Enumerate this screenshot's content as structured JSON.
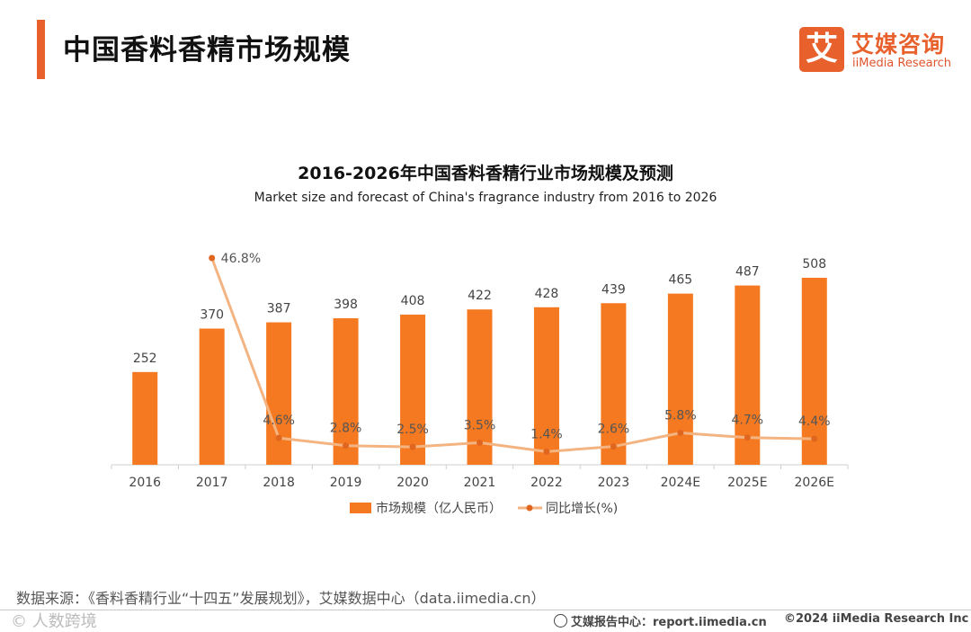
{
  "header": {
    "title": "中国香料香精市场规模",
    "logo_mark": "艾",
    "logo_cn": "艾媒咨询",
    "logo_en": "iiMedia Research"
  },
  "colors": {
    "accent": "#e8612c",
    "bar": "#f47920",
    "line": "#f3b482",
    "dot": "#e0661f"
  },
  "chart_data": {
    "type": "bar",
    "title": "2016-2026年中国香料香精行业市场规模及预测",
    "subtitle": "Market size and forecast of China's fragrance industry from 2016 to 2026",
    "categories": [
      "2016",
      "2017",
      "2018",
      "2019",
      "2020",
      "2021",
      "2022",
      "2023",
      "2024E",
      "2025E",
      "2026E"
    ],
    "series": [
      {
        "name": "市场规模（亿人民币）",
        "type": "bar",
        "values": [
          252,
          370,
          387,
          398,
          408,
          422,
          428,
          439,
          465,
          487,
          508
        ]
      },
      {
        "name": "同比增长(%)",
        "type": "line",
        "values": [
          null,
          46.8,
          4.6,
          2.8,
          2.5,
          3.5,
          1.4,
          2.6,
          5.8,
          4.7,
          4.4
        ],
        "labels": [
          "",
          "46.8%",
          "4.6%",
          "2.8%",
          "2.5%",
          "3.5%",
          "1.4%",
          "2.6%",
          "5.8%",
          "4.7%",
          "4.4%"
        ]
      }
    ],
    "grid": false,
    "legend_position": "bottom"
  },
  "footer": {
    "source": "数据来源：《香料香精行业“十四五”发展规划》，艾媒数据中心（data.iimedia.cn）",
    "watermark": "© 人数跨境",
    "report": "艾媒报告中心：report.iimedia.cn",
    "copyright": "©2024  iiMedia Research  Inc"
  }
}
